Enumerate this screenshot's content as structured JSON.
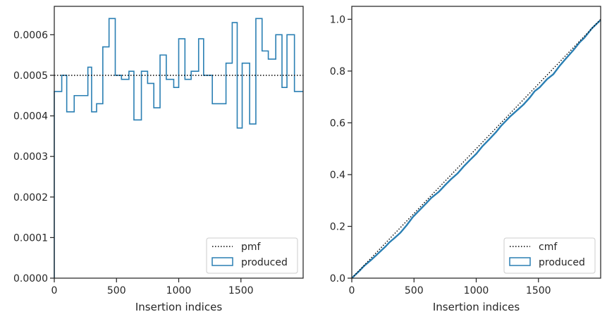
{
  "chart_data": [
    {
      "type": "line",
      "subtype": "step-histogram",
      "title": "",
      "xlabel": "Insertion indices",
      "ylabel": "",
      "xlim": [
        0,
        2000
      ],
      "ylim": [
        0,
        0.00067
      ],
      "xticks": [
        0,
        500,
        1000,
        1500
      ],
      "xtick_labels": [
        "0",
        "500",
        "1000",
        "1500"
      ],
      "yticks": [
        0,
        0.0001,
        0.0002,
        0.0003,
        0.0004,
        0.0005,
        0.0006
      ],
      "ytick_labels": [
        "0.0000",
        "0.0001",
        "0.0002",
        "0.0003",
        "0.0004",
        "0.0005",
        "0.0006"
      ],
      "grid": false,
      "legend_position": "lower-right",
      "bin_edges": [
        0,
        60,
        100,
        160,
        220,
        270,
        300,
        340,
        390,
        440,
        490,
        540,
        600,
        640,
        700,
        750,
        800,
        850,
        900,
        960,
        1000,
        1050,
        1100,
        1160,
        1200,
        1270,
        1340,
        1380,
        1430,
        1470,
        1510,
        1570,
        1620,
        1670,
        1720,
        1780,
        1830,
        1870,
        1930,
        2000
      ],
      "bin_values": [
        0.00046,
        0.0005,
        0.00041,
        0.00045,
        0.00045,
        0.00052,
        0.00041,
        0.00043,
        0.00057,
        0.00064,
        0.0005,
        0.00049,
        0.00051,
        0.00039,
        0.00051,
        0.00048,
        0.00042,
        0.00055,
        0.00049,
        0.00047,
        0.00059,
        0.00049,
        0.00051,
        0.00059,
        0.0005,
        0.00043,
        0.00043,
        0.00053,
        0.00063,
        0.00037,
        0.00053,
        0.00038,
        0.00064,
        0.00056,
        0.00054,
        0.0006,
        0.00047,
        0.0006,
        0.00046
      ],
      "reference_value": 0.0005,
      "series": [
        {
          "name": "pmf",
          "style": "dotted",
          "color": "#000000"
        },
        {
          "name": "produced",
          "style": "step",
          "color": "#2a7fb3"
        }
      ]
    },
    {
      "type": "line",
      "subtype": "cumulative",
      "title": "",
      "xlabel": "Insertion indices",
      "ylabel": "",
      "xlim": [
        0,
        2000
      ],
      "ylim": [
        0,
        1.05
      ],
      "xticks": [
        0,
        500,
        1000,
        1500
      ],
      "xtick_labels": [
        "0",
        "500",
        "1000",
        "1500"
      ],
      "yticks": [
        0,
        0.2,
        0.4,
        0.6,
        0.8,
        1.0
      ],
      "ytick_labels": [
        "0.0",
        "0.2",
        "0.4",
        "0.6",
        "0.8",
        "1.0"
      ],
      "grid": false,
      "legend_position": "lower-right",
      "reference_line": {
        "x": [
          0,
          2000
        ],
        "y": [
          0,
          1.0
        ]
      },
      "series": [
        {
          "name": "cmf",
          "style": "dotted",
          "color": "#000000"
        },
        {
          "name": "produced",
          "style": "step",
          "color": "#2a7fb3"
        }
      ]
    }
  ]
}
